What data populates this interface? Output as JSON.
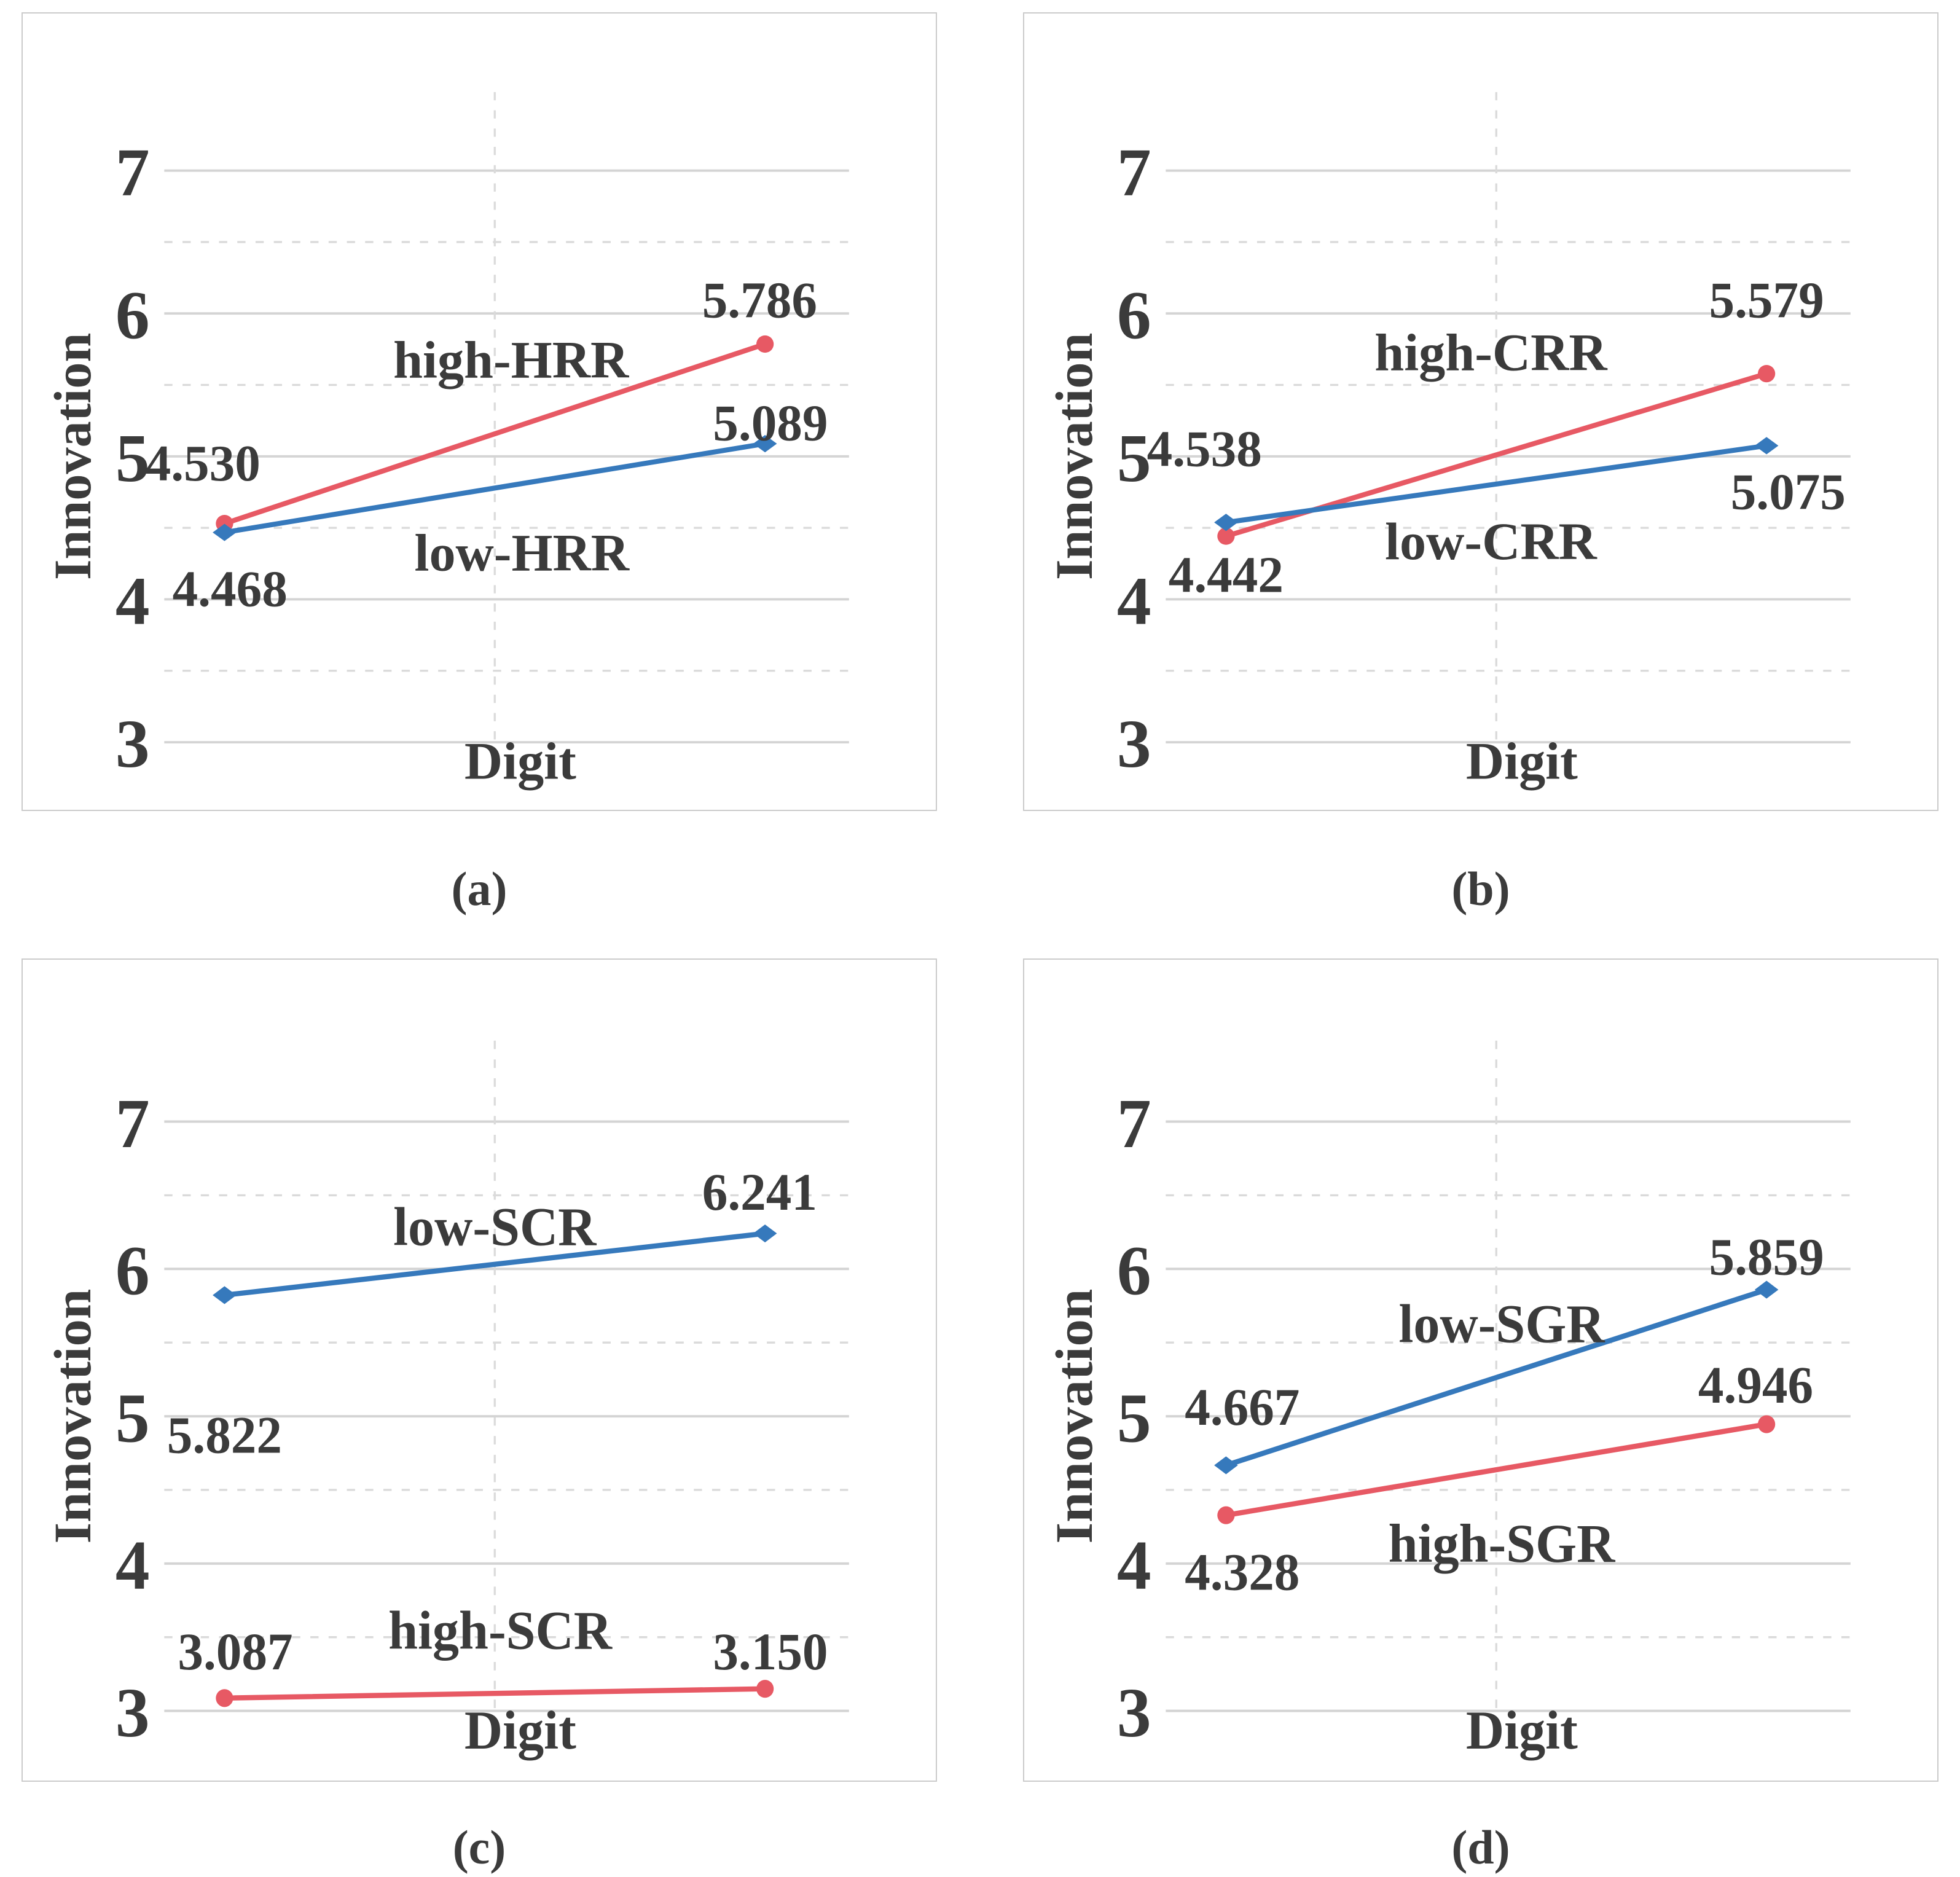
{
  "page": {
    "background": "#ffffff"
  },
  "colors": {
    "red": "#E75964",
    "blue": "#3679BC",
    "grid_solid": "#d4d4d4",
    "grid_dashed": "#dadada",
    "text": "#3b3b3b",
    "panel_border": "#cbcbcb"
  },
  "chart_data": [
    {
      "id": "a",
      "caption": "(a)",
      "type": "line",
      "title": "",
      "xlabel": "Digit",
      "ylabel": "Innovation",
      "ylim": [
        2.6,
        7.4
      ],
      "yticks": [
        3,
        4,
        5,
        6,
        7
      ],
      "minor_gridlines": [
        3.5,
        4.5,
        5.5,
        6.5
      ],
      "grid": "on",
      "legend_position": "inline-labels",
      "n_categories": 2,
      "series": [
        {
          "name": "high-HRR",
          "color_key": "red",
          "marker": "circle",
          "values": [
            4.53,
            5.786
          ]
        },
        {
          "name": "low-HRR",
          "color_key": "blue",
          "marker": "diamond",
          "values": [
            4.468,
            5.089
          ]
        }
      ],
      "value_labels": [
        {
          "text": "4.530",
          "xf": -0.04,
          "y": 4.96
        },
        {
          "text": "5.786",
          "xf": 0.99,
          "y": 6.1
        },
        {
          "text": "4.468",
          "xf": 0.01,
          "y": 4.08
        },
        {
          "text": "5.089",
          "xf": 1.01,
          "y": 5.24
        }
      ],
      "series_labels": [
        {
          "text": "high-HRR",
          "xf": 0.53,
          "y": 5.68
        },
        {
          "text": "low-HRR",
          "xf": 0.55,
          "y": 4.33
        }
      ]
    },
    {
      "id": "b",
      "caption": "(b)",
      "type": "line",
      "title": "",
      "xlabel": "Digit",
      "ylabel": "Innovation",
      "ylim": [
        2.6,
        7.4
      ],
      "yticks": [
        3,
        4,
        5,
        6,
        7
      ],
      "minor_gridlines": [
        3.5,
        4.5,
        5.5,
        6.5
      ],
      "grid": "on",
      "legend_position": "inline-labels",
      "n_categories": 2,
      "series": [
        {
          "name": "high-CRR",
          "color_key": "red",
          "marker": "circle",
          "values": [
            4.442,
            5.579
          ]
        },
        {
          "name": "low-CRR",
          "color_key": "blue",
          "marker": "diamond",
          "values": [
            4.538,
            5.075
          ]
        }
      ],
      "value_labels": [
        {
          "text": "4.538",
          "xf": -0.04,
          "y": 5.06
        },
        {
          "text": "4.442",
          "xf": 0.0,
          "y": 4.18
        },
        {
          "text": "5.579",
          "xf": 1.0,
          "y": 6.1
        },
        {
          "text": "5.075",
          "xf": 1.04,
          "y": 4.76
        }
      ],
      "series_labels": [
        {
          "text": "high-CRR",
          "xf": 0.49,
          "y": 5.73
        },
        {
          "text": "low-CRR",
          "xf": 0.49,
          "y": 4.41
        }
      ]
    },
    {
      "id": "c",
      "caption": "(c)",
      "type": "line",
      "title": "",
      "xlabel": "Digit",
      "ylabel": "Innovation",
      "ylim": [
        2.6,
        7.4
      ],
      "yticks": [
        3,
        4,
        5,
        6,
        7
      ],
      "minor_gridlines": [
        3.5,
        4.5,
        5.5,
        6.5
      ],
      "grid": "on",
      "legend_position": "inline-labels",
      "n_categories": 2,
      "series": [
        {
          "name": "low-SCR",
          "color_key": "blue",
          "marker": "diamond",
          "values": [
            5.822,
            6.241
          ]
        },
        {
          "name": "high-SCR",
          "color_key": "red",
          "marker": "circle",
          "values": [
            3.087,
            3.15
          ]
        }
      ],
      "value_labels": [
        {
          "text": "5.822",
          "xf": 0.0,
          "y": 4.88
        },
        {
          "text": "6.241",
          "xf": 0.99,
          "y": 6.53
        },
        {
          "text": "3.087",
          "xf": 0.02,
          "y": 3.41
        },
        {
          "text": "3.150",
          "xf": 1.01,
          "y": 3.41
        }
      ],
      "series_labels": [
        {
          "text": "low-SCR",
          "xf": 0.5,
          "y": 6.29
        },
        {
          "text": "high-SCR",
          "xf": 0.51,
          "y": 3.55
        }
      ]
    },
    {
      "id": "d",
      "caption": "(d)",
      "type": "line",
      "title": "",
      "xlabel": "Digit",
      "ylabel": "Innovation",
      "ylim": [
        2.6,
        7.4
      ],
      "yticks": [
        3,
        4,
        5,
        6,
        7
      ],
      "minor_gridlines": [
        3.5,
        4.5,
        5.5,
        6.5
      ],
      "grid": "on",
      "legend_position": "inline-labels",
      "n_categories": 2,
      "series": [
        {
          "name": "low-SGR",
          "color_key": "blue",
          "marker": "diamond",
          "values": [
            4.667,
            5.859
          ]
        },
        {
          "name": "high-SGR",
          "color_key": "red",
          "marker": "circle",
          "values": [
            4.328,
            4.946
          ]
        }
      ],
      "value_labels": [
        {
          "text": "4.667",
          "xf": 0.03,
          "y": 5.07
        },
        {
          "text": "4.328",
          "xf": 0.03,
          "y": 3.95
        },
        {
          "text": "5.859",
          "xf": 1.0,
          "y": 6.09
        },
        {
          "text": "4.946",
          "xf": 0.98,
          "y": 5.22
        }
      ],
      "series_labels": [
        {
          "text": "low-SGR",
          "xf": 0.51,
          "y": 5.63
        },
        {
          "text": "high-SGR",
          "xf": 0.51,
          "y": 4.14
        }
      ]
    }
  ]
}
